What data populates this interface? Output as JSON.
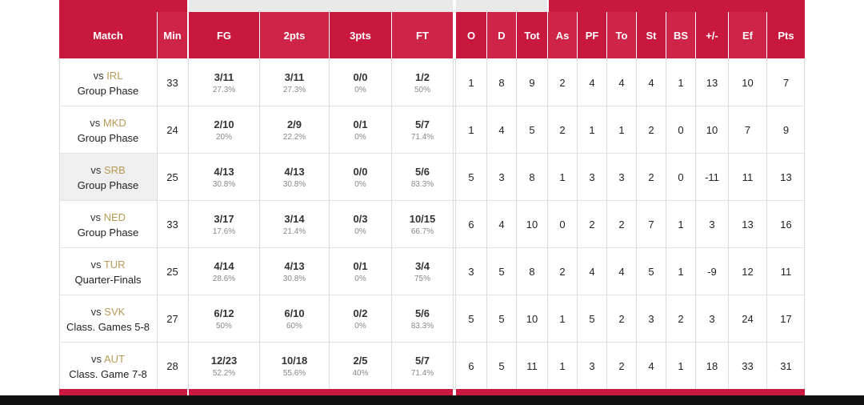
{
  "colors": {
    "header_red": "#c8183e",
    "team_gold": "#b89a55",
    "highlight_row": "#efefef"
  },
  "headers": {
    "match": "Match",
    "min": "Min",
    "fg": "FG",
    "pts2": "2pts",
    "pts3": "3pts",
    "ft": "FT",
    "o": "O",
    "d": "D",
    "tot": "Tot",
    "as": "As",
    "pf": "PF",
    "to": "To",
    "st": "St",
    "bs": "BS",
    "pm": "+/-",
    "ef": "Ef",
    "pts": "Pts"
  },
  "rows": [
    {
      "vs": "vs",
      "team": "IRL",
      "phase": "Group Phase",
      "min": "33",
      "fg": "3/11",
      "fg_pct": "27.3%",
      "p2": "3/11",
      "p2_pct": "27.3%",
      "p3": "0/0",
      "p3_pct": "0%",
      "ft": "1/2",
      "ft_pct": "50%",
      "o": "1",
      "d": "8",
      "tot": "9",
      "as": "2",
      "pf": "4",
      "to": "4",
      "st": "4",
      "bs": "1",
      "pm": "13",
      "ef": "10",
      "pts": "7"
    },
    {
      "vs": "vs",
      "team": "MKD",
      "phase": "Group Phase",
      "min": "24",
      "fg": "2/10",
      "fg_pct": "20%",
      "p2": "2/9",
      "p2_pct": "22.2%",
      "p3": "0/1",
      "p3_pct": "0%",
      "ft": "5/7",
      "ft_pct": "71.4%",
      "o": "1",
      "d": "4",
      "tot": "5",
      "as": "2",
      "pf": "1",
      "to": "1",
      "st": "2",
      "bs": "0",
      "pm": "10",
      "ef": "7",
      "pts": "9"
    },
    {
      "vs": "vs",
      "team": "SRB",
      "phase": "Group Phase",
      "min": "25",
      "fg": "4/13",
      "fg_pct": "30.8%",
      "p2": "4/13",
      "p2_pct": "30.8%",
      "p3": "0/0",
      "p3_pct": "0%",
      "ft": "5/6",
      "ft_pct": "83.3%",
      "o": "5",
      "d": "3",
      "tot": "8",
      "as": "1",
      "pf": "3",
      "to": "3",
      "st": "2",
      "bs": "0",
      "pm": "-11",
      "ef": "11",
      "pts": "13"
    },
    {
      "vs": "vs",
      "team": "NED",
      "phase": "Group Phase",
      "min": "33",
      "fg": "3/17",
      "fg_pct": "17.6%",
      "p2": "3/14",
      "p2_pct": "21.4%",
      "p3": "0/3",
      "p3_pct": "0%",
      "ft": "10/15",
      "ft_pct": "66.7%",
      "o": "6",
      "d": "4",
      "tot": "10",
      "as": "0",
      "pf": "2",
      "to": "2",
      "st": "7",
      "bs": "1",
      "pm": "3",
      "ef": "13",
      "pts": "16"
    },
    {
      "vs": "vs",
      "team": "TUR",
      "phase": "Quarter-Finals",
      "min": "25",
      "fg": "4/14",
      "fg_pct": "28.6%",
      "p2": "4/13",
      "p2_pct": "30.8%",
      "p3": "0/1",
      "p3_pct": "0%",
      "ft": "3/4",
      "ft_pct": "75%",
      "o": "3",
      "d": "5",
      "tot": "8",
      "as": "2",
      "pf": "4",
      "to": "4",
      "st": "5",
      "bs": "1",
      "pm": "-9",
      "ef": "12",
      "pts": "11"
    },
    {
      "vs": "vs",
      "team": "SVK",
      "phase": "Class. Games 5-8",
      "min": "27",
      "fg": "6/12",
      "fg_pct": "50%",
      "p2": "6/10",
      "p2_pct": "60%",
      "p3": "0/2",
      "p3_pct": "0%",
      "ft": "5/6",
      "ft_pct": "83.3%",
      "o": "5",
      "d": "5",
      "tot": "10",
      "as": "1",
      "pf": "5",
      "to": "2",
      "st": "3",
      "bs": "2",
      "pm": "3",
      "ef": "24",
      "pts": "17"
    },
    {
      "vs": "vs",
      "team": "AUT",
      "phase": "Class. Game 7-8",
      "min": "28",
      "fg": "12/23",
      "fg_pct": "52.2%",
      "p2": "10/18",
      "p2_pct": "55.6%",
      "p3": "2/5",
      "p3_pct": "40%",
      "ft": "5/7",
      "ft_pct": "71.4%",
      "o": "6",
      "d": "5",
      "tot": "11",
      "as": "1",
      "pf": "3",
      "to": "2",
      "st": "4",
      "bs": "1",
      "pm": "18",
      "ef": "33",
      "pts": "31"
    }
  ]
}
